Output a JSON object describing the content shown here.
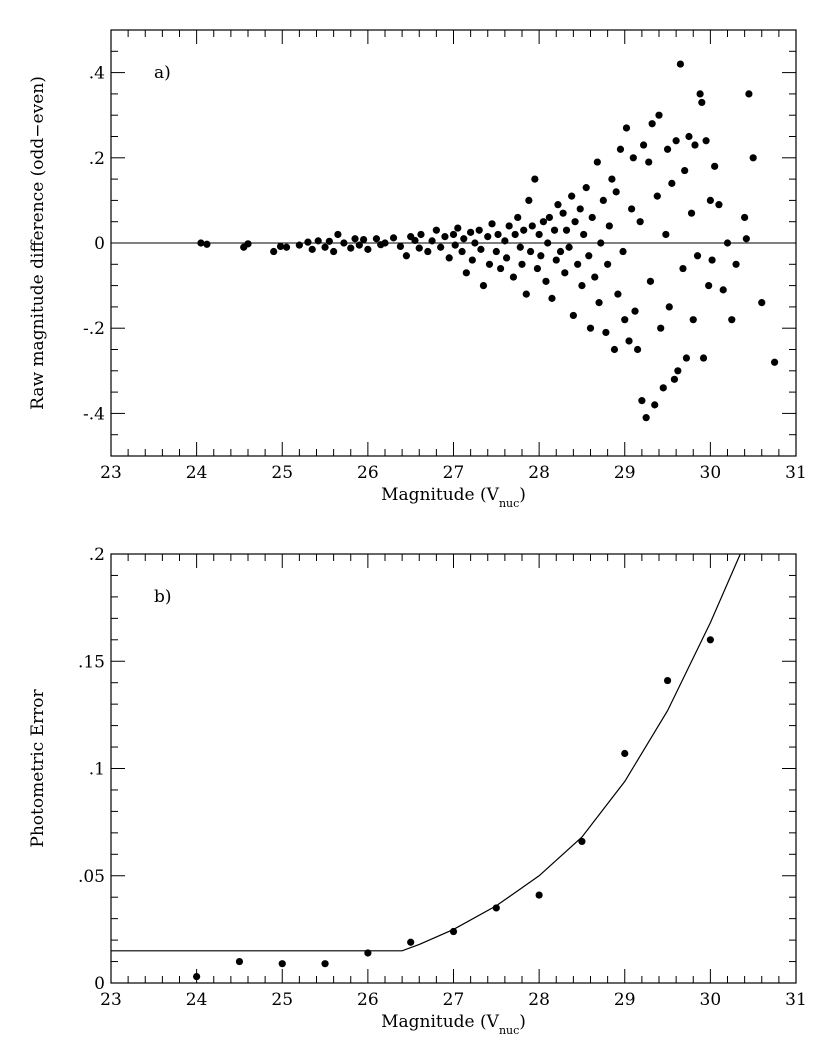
{
  "chart_data": [
    {
      "type": "scatter",
      "panel_label": "a)",
      "xlabel": "Magnitude (V",
      "xlabel_sub": "nuc",
      "xlabel_tail": ")",
      "ylabel": "Raw magnitude difference (odd−even)",
      "xlim": [
        23,
        31
      ],
      "ylim": [
        -0.5,
        0.5
      ],
      "xticks": [
        {
          "value": 23,
          "label": "23"
        },
        {
          "value": 24,
          "label": "24"
        },
        {
          "value": 25,
          "label": "25"
        },
        {
          "value": 26,
          "label": "26"
        },
        {
          "value": 27,
          "label": "27"
        },
        {
          "value": 28,
          "label": "28"
        },
        {
          "value": 29,
          "label": "29"
        },
        {
          "value": 30,
          "label": "30"
        },
        {
          "value": 31,
          "label": "31"
        }
      ],
      "yticks": [
        {
          "value": -0.4,
          "label": "-.4"
        },
        {
          "value": -0.2,
          "label": "-.2"
        },
        {
          "value": 0,
          "label": "0"
        },
        {
          "value": 0.2,
          "label": ".2"
        },
        {
          "value": 0.4,
          "label": ".4"
        }
      ],
      "reference_line_y": 0,
      "points": [
        [
          24.05,
          0.0
        ],
        [
          24.12,
          -0.003
        ],
        [
          24.55,
          -0.01
        ],
        [
          24.6,
          -0.002
        ],
        [
          24.9,
          -0.02
        ],
        [
          24.98,
          -0.008
        ],
        [
          25.05,
          -0.01
        ],
        [
          25.2,
          -0.005
        ],
        [
          25.3,
          0.002
        ],
        [
          25.35,
          -0.015
        ],
        [
          25.42,
          0.005
        ],
        [
          25.5,
          -0.01
        ],
        [
          25.55,
          0.004
        ],
        [
          25.6,
          -0.02
        ],
        [
          25.65,
          0.02
        ],
        [
          25.72,
          0.0
        ],
        [
          25.8,
          -0.012
        ],
        [
          25.85,
          0.01
        ],
        [
          25.9,
          -0.005
        ],
        [
          25.95,
          0.008
        ],
        [
          26.0,
          -0.015
        ],
        [
          26.1,
          0.01
        ],
        [
          26.15,
          -0.004
        ],
        [
          26.2,
          0.0
        ],
        [
          26.3,
          0.012
        ],
        [
          26.38,
          -0.008
        ],
        [
          26.45,
          -0.03
        ],
        [
          26.5,
          0.015
        ],
        [
          26.55,
          0.006
        ],
        [
          26.6,
          -0.012
        ],
        [
          26.62,
          0.02
        ],
        [
          26.7,
          -0.02
        ],
        [
          26.75,
          0.005
        ],
        [
          26.8,
          0.03
        ],
        [
          26.85,
          -0.01
        ],
        [
          26.9,
          0.015
        ],
        [
          26.95,
          -0.035
        ],
        [
          27.0,
          0.02
        ],
        [
          27.02,
          -0.005
        ],
        [
          27.05,
          0.035
        ],
        [
          27.1,
          -0.02
        ],
        [
          27.12,
          0.01
        ],
        [
          27.15,
          -0.07
        ],
        [
          27.2,
          0.025
        ],
        [
          27.22,
          -0.04
        ],
        [
          27.25,
          0.0
        ],
        [
          27.3,
          0.03
        ],
        [
          27.32,
          -0.015
        ],
        [
          27.35,
          -0.1
        ],
        [
          27.4,
          0.015
        ],
        [
          27.42,
          -0.05
        ],
        [
          27.45,
          0.045
        ],
        [
          27.5,
          -0.02
        ],
        [
          27.52,
          0.02
        ],
        [
          27.55,
          -0.06
        ],
        [
          27.6,
          0.005
        ],
        [
          27.62,
          -0.035
        ],
        [
          27.65,
          0.04
        ],
        [
          27.7,
          -0.08
        ],
        [
          27.72,
          0.02
        ],
        [
          27.75,
          0.06
        ],
        [
          27.78,
          -0.01
        ],
        [
          27.8,
          -0.05
        ],
        [
          27.82,
          0.03
        ],
        [
          27.85,
          -0.12
        ],
        [
          27.88,
          0.1
        ],
        [
          27.9,
          -0.02
        ],
        [
          27.92,
          0.04
        ],
        [
          27.95,
          0.15
        ],
        [
          27.98,
          -0.06
        ],
        [
          28.0,
          0.02
        ],
        [
          28.02,
          -0.03
        ],
        [
          28.05,
          0.05
        ],
        [
          28.08,
          -0.09
        ],
        [
          28.1,
          0.0
        ],
        [
          28.12,
          0.06
        ],
        [
          28.15,
          -0.13
        ],
        [
          28.18,
          0.03
        ],
        [
          28.2,
          -0.04
        ],
        [
          28.22,
          0.09
        ],
        [
          28.25,
          -0.02
        ],
        [
          28.28,
          0.07
        ],
        [
          28.3,
          -0.07
        ],
        [
          28.32,
          0.03
        ],
        [
          28.35,
          -0.01
        ],
        [
          28.38,
          0.11
        ],
        [
          28.4,
          -0.17
        ],
        [
          28.42,
          0.05
        ],
        [
          28.45,
          -0.05
        ],
        [
          28.48,
          0.08
        ],
        [
          28.5,
          -0.1
        ],
        [
          28.52,
          0.02
        ],
        [
          28.55,
          0.13
        ],
        [
          28.58,
          -0.03
        ],
        [
          28.6,
          -0.2
        ],
        [
          28.62,
          0.06
        ],
        [
          28.65,
          -0.08
        ],
        [
          28.68,
          0.19
        ],
        [
          28.7,
          -0.14
        ],
        [
          28.72,
          0.0
        ],
        [
          28.75,
          0.1
        ],
        [
          28.78,
          -0.21
        ],
        [
          28.8,
          -0.05
        ],
        [
          28.82,
          0.04
        ],
        [
          28.85,
          0.15
        ],
        [
          28.88,
          -0.25
        ],
        [
          28.9,
          0.12
        ],
        [
          28.92,
          -0.12
        ],
        [
          28.95,
          0.22
        ],
        [
          28.98,
          -0.02
        ],
        [
          29.0,
          -0.18
        ],
        [
          29.02,
          0.27
        ],
        [
          29.05,
          -0.23
        ],
        [
          29.08,
          0.08
        ],
        [
          29.1,
          0.2
        ],
        [
          29.12,
          -0.16
        ],
        [
          29.15,
          -0.25
        ],
        [
          29.18,
          0.05
        ],
        [
          29.2,
          -0.37
        ],
        [
          29.22,
          0.23
        ],
        [
          29.25,
          -0.41
        ],
        [
          29.28,
          0.19
        ],
        [
          29.3,
          -0.09
        ],
        [
          29.32,
          0.28
        ],
        [
          29.35,
          -0.38
        ],
        [
          29.38,
          0.11
        ],
        [
          29.4,
          0.3
        ],
        [
          29.42,
          -0.2
        ],
        [
          29.45,
          -0.34
        ],
        [
          29.48,
          0.02
        ],
        [
          29.5,
          0.22
        ],
        [
          29.52,
          -0.15
        ],
        [
          29.55,
          0.14
        ],
        [
          29.58,
          -0.32
        ],
        [
          29.6,
          0.24
        ],
        [
          29.62,
          -0.3
        ],
        [
          29.65,
          0.42
        ],
        [
          29.68,
          -0.06
        ],
        [
          29.7,
          0.17
        ],
        [
          29.72,
          -0.27
        ],
        [
          29.75,
          0.25
        ],
        [
          29.78,
          0.07
        ],
        [
          29.8,
          -0.18
        ],
        [
          29.82,
          0.23
        ],
        [
          29.85,
          -0.03
        ],
        [
          29.88,
          0.35
        ],
        [
          29.9,
          0.33
        ],
        [
          29.92,
          -0.27
        ],
        [
          29.95,
          0.24
        ],
        [
          29.98,
          -0.1
        ],
        [
          30.0,
          0.1
        ],
        [
          30.02,
          -0.04
        ],
        [
          30.05,
          0.18
        ],
        [
          30.1,
          0.09
        ],
        [
          30.15,
          -0.11
        ],
        [
          30.2,
          0.0
        ],
        [
          30.25,
          -0.18
        ],
        [
          30.3,
          -0.05
        ],
        [
          30.4,
          0.06
        ],
        [
          30.42,
          0.01
        ],
        [
          30.45,
          0.35
        ],
        [
          30.5,
          0.2
        ],
        [
          30.6,
          -0.14
        ],
        [
          30.75,
          -0.28
        ]
      ]
    },
    {
      "type": "scatter",
      "panel_label": "b)",
      "xlabel": "Magnitude (V",
      "xlabel_sub": "nuc",
      "xlabel_tail": ")",
      "ylabel": "Photometric Error",
      "xlim": [
        23,
        31
      ],
      "ylim": [
        0,
        0.2
      ],
      "xticks": [
        {
          "value": 23,
          "label": "23"
        },
        {
          "value": 24,
          "label": "24"
        },
        {
          "value": 25,
          "label": "25"
        },
        {
          "value": 26,
          "label": "26"
        },
        {
          "value": 27,
          "label": "27"
        },
        {
          "value": 28,
          "label": "28"
        },
        {
          "value": 29,
          "label": "29"
        },
        {
          "value": 30,
          "label": "30"
        },
        {
          "value": 31,
          "label": "31"
        }
      ],
      "yticks": [
        {
          "value": 0,
          "label": "0"
        },
        {
          "value": 0.05,
          "label": ".05"
        },
        {
          "value": 0.1,
          "label": ".1"
        },
        {
          "value": 0.15,
          "label": ".15"
        },
        {
          "value": 0.2,
          "label": ".2"
        }
      ],
      "points": [
        [
          24.0,
          0.003
        ],
        [
          24.5,
          0.01
        ],
        [
          25.0,
          0.009
        ],
        [
          25.5,
          0.009
        ],
        [
          26.0,
          0.014
        ],
        [
          26.5,
          0.019
        ],
        [
          27.0,
          0.024
        ],
        [
          27.5,
          0.035
        ],
        [
          28.0,
          0.041
        ],
        [
          28.5,
          0.066
        ],
        [
          29.0,
          0.107
        ],
        [
          29.5,
          0.141
        ],
        [
          30.0,
          0.16
        ]
      ],
      "fit_curve": [
        [
          23.0,
          0.015
        ],
        [
          26.4,
          0.015
        ],
        [
          26.6,
          0.018
        ],
        [
          27.0,
          0.025
        ],
        [
          27.5,
          0.036
        ],
        [
          28.0,
          0.05
        ],
        [
          28.5,
          0.068
        ],
        [
          29.0,
          0.094
        ],
        [
          29.5,
          0.127
        ],
        [
          30.0,
          0.168
        ],
        [
          30.35,
          0.2
        ]
      ]
    }
  ]
}
